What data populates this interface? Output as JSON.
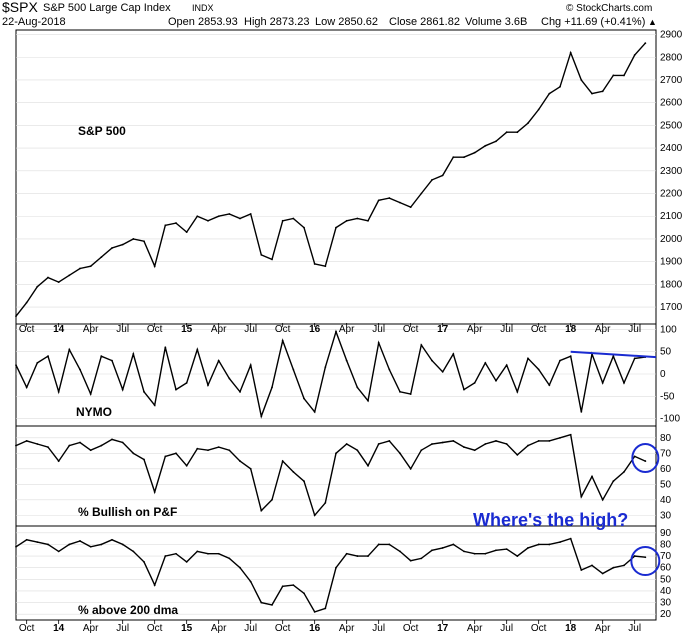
{
  "header": {
    "symbol": "$SPX",
    "name": "S&P 500 Large Cap Index",
    "exchange": "INDX",
    "date": "22-Aug-2018",
    "open": "Open 2853.93",
    "high": "High 2873.23",
    "low": "Low 2850.62",
    "close": "Close 2861.82",
    "volume": "Volume 3.6B",
    "chg": "Chg +11.69 (+0.41%)",
    "chg_arrow": "▲",
    "credit": "© StockCharts.com"
  },
  "x_tick_labels": [
    "Oct",
    "14",
    "Apr",
    "Jul",
    "Oct",
    "15",
    "Apr",
    "Jul",
    "Oct",
    "16",
    "Apr",
    "Jul",
    "Oct",
    "17",
    "Apr",
    "Jul",
    "Oct",
    "18",
    "Apr",
    "Jul"
  ],
  "annotation": "Where's the high?",
  "colors": {
    "price": "#000000",
    "annotation": "#1a2bd1",
    "grid": "#dddddd"
  },
  "chart_data": [
    {
      "type": "line",
      "name": "S&P 500",
      "x_range": [
        "2013-09",
        "2018-08"
      ],
      "y_ticks": [
        1700,
        1800,
        1900,
        2000,
        2100,
        2200,
        2300,
        2400,
        2500,
        2600,
        2700,
        2800,
        2900
      ],
      "ylim": [
        1630,
        2920
      ],
      "points": [
        [
          "2013-09",
          1660
        ],
        [
          "2013-10",
          1720
        ],
        [
          "2013-11",
          1790
        ],
        [
          "2013-12",
          1830
        ],
        [
          "2014-01",
          1810
        ],
        [
          "2014-02",
          1840
        ],
        [
          "2014-03",
          1870
        ],
        [
          "2014-04",
          1880
        ],
        [
          "2014-05",
          1920
        ],
        [
          "2014-06",
          1960
        ],
        [
          "2014-07",
          1975
        ],
        [
          "2014-08",
          2000
        ],
        [
          "2014-09",
          1990
        ],
        [
          "2014-10",
          1880
        ],
        [
          "2014-11",
          2060
        ],
        [
          "2014-12",
          2070
        ],
        [
          "2015-01",
          2030
        ],
        [
          "2015-02",
          2100
        ],
        [
          "2015-03",
          2080
        ],
        [
          "2015-04",
          2100
        ],
        [
          "2015-05",
          2110
        ],
        [
          "2015-06",
          2090
        ],
        [
          "2015-07",
          2110
        ],
        [
          "2015-08",
          1930
        ],
        [
          "2015-09",
          1910
        ],
        [
          "2015-10",
          2080
        ],
        [
          "2015-11",
          2090
        ],
        [
          "2015-12",
          2050
        ],
        [
          "2016-01",
          1890
        ],
        [
          "2016-02",
          1880
        ],
        [
          "2016-03",
          2050
        ],
        [
          "2016-04",
          2080
        ],
        [
          "2016-05",
          2090
        ],
        [
          "2016-06",
          2080
        ],
        [
          "2016-07",
          2170
        ],
        [
          "2016-08",
          2180
        ],
        [
          "2016-09",
          2160
        ],
        [
          "2016-10",
          2140
        ],
        [
          "2016-11",
          2200
        ],
        [
          "2016-12",
          2260
        ],
        [
          "2017-01",
          2280
        ],
        [
          "2017-02",
          2360
        ],
        [
          "2017-03",
          2360
        ],
        [
          "2017-04",
          2380
        ],
        [
          "2017-05",
          2410
        ],
        [
          "2017-06",
          2430
        ],
        [
          "2017-07",
          2470
        ],
        [
          "2017-08",
          2470
        ],
        [
          "2017-09",
          2510
        ],
        [
          "2017-10",
          2570
        ],
        [
          "2017-11",
          2640
        ],
        [
          "2017-12",
          2670
        ],
        [
          "2018-01",
          2820
        ],
        [
          "2018-02",
          2700
        ],
        [
          "2018-03",
          2640
        ],
        [
          "2018-04",
          2650
        ],
        [
          "2018-05",
          2720
        ],
        [
          "2018-06",
          2720
        ],
        [
          "2018-07",
          2810
        ],
        [
          "2018-08",
          2862
        ]
      ],
      "annotations": [
        "S&P 500"
      ]
    },
    {
      "type": "line",
      "name": "NYMO",
      "y_ticks": [
        100,
        50,
        0,
        -50,
        -100
      ],
      "ylim": [
        -110,
        110
      ],
      "points": [
        [
          "2013-09",
          20
        ],
        [
          "2013-10",
          -30
        ],
        [
          "2013-11",
          25
        ],
        [
          "2013-12",
          40
        ],
        [
          "2014-01",
          -40
        ],
        [
          "2014-02",
          55
        ],
        [
          "2014-03",
          10
        ],
        [
          "2014-04",
          -45
        ],
        [
          "2014-05",
          40
        ],
        [
          "2014-06",
          30
        ],
        [
          "2014-07",
          -35
        ],
        [
          "2014-08",
          45
        ],
        [
          "2014-09",
          -40
        ],
        [
          "2014-10",
          -70
        ],
        [
          "2014-11",
          60
        ],
        [
          "2014-12",
          -35
        ],
        [
          "2015-01",
          -20
        ],
        [
          "2015-02",
          55
        ],
        [
          "2015-03",
          -25
        ],
        [
          "2015-04",
          30
        ],
        [
          "2015-05",
          -10
        ],
        [
          "2015-06",
          -40
        ],
        [
          "2015-07",
          20
        ],
        [
          "2015-08",
          -95
        ],
        [
          "2015-09",
          -30
        ],
        [
          "2015-10",
          75
        ],
        [
          "2015-11",
          10
        ],
        [
          "2015-12",
          -55
        ],
        [
          "2016-01",
          -85
        ],
        [
          "2016-02",
          15
        ],
        [
          "2016-03",
          95
        ],
        [
          "2016-04",
          30
        ],
        [
          "2016-05",
          -30
        ],
        [
          "2016-06",
          -60
        ],
        [
          "2016-07",
          70
        ],
        [
          "2016-08",
          10
        ],
        [
          "2016-09",
          -40
        ],
        [
          "2016-10",
          -45
        ],
        [
          "2016-11",
          65
        ],
        [
          "2016-12",
          30
        ],
        [
          "2017-01",
          5
        ],
        [
          "2017-02",
          45
        ],
        [
          "2017-03",
          -35
        ],
        [
          "2017-04",
          -20
        ],
        [
          "2017-05",
          25
        ],
        [
          "2017-06",
          -15
        ],
        [
          "2017-07",
          20
        ],
        [
          "2017-08",
          -40
        ],
        [
          "2017-09",
          35
        ],
        [
          "2017-10",
          10
        ],
        [
          "2017-11",
          -25
        ],
        [
          "2017-12",
          30
        ],
        [
          "2018-01",
          40
        ],
        [
          "2018-02",
          -85
        ],
        [
          "2018-03",
          45
        ],
        [
          "2018-04",
          -20
        ],
        [
          "2018-05",
          40
        ],
        [
          "2018-06",
          -20
        ],
        [
          "2018-07",
          35
        ],
        [
          "2018-08",
          38
        ]
      ],
      "annotations": [
        "NYMO"
      ]
    },
    {
      "type": "line",
      "name": "% Bullish on P&F",
      "y_ticks": [
        80,
        70,
        60,
        50,
        40,
        30
      ],
      "ylim": [
        25,
        87
      ],
      "points": [
        [
          "2013-09",
          75
        ],
        [
          "2013-10",
          78
        ],
        [
          "2013-11",
          76
        ],
        [
          "2013-12",
          74
        ],
        [
          "2014-01",
          65
        ],
        [
          "2014-02",
          75
        ],
        [
          "2014-03",
          77
        ],
        [
          "2014-04",
          72
        ],
        [
          "2014-05",
          75
        ],
        [
          "2014-06",
          79
        ],
        [
          "2014-07",
          77
        ],
        [
          "2014-08",
          70
        ],
        [
          "2014-09",
          66
        ],
        [
          "2014-10",
          45
        ],
        [
          "2014-11",
          68
        ],
        [
          "2014-12",
          70
        ],
        [
          "2015-01",
          62
        ],
        [
          "2015-02",
          73
        ],
        [
          "2015-03",
          72
        ],
        [
          "2015-04",
          74
        ],
        [
          "2015-05",
          72
        ],
        [
          "2015-06",
          65
        ],
        [
          "2015-07",
          60
        ],
        [
          "2015-08",
          33
        ],
        [
          "2015-09",
          40
        ],
        [
          "2015-10",
          65
        ],
        [
          "2015-11",
          58
        ],
        [
          "2015-12",
          52
        ],
        [
          "2016-01",
          30
        ],
        [
          "2016-02",
          38
        ],
        [
          "2016-03",
          70
        ],
        [
          "2016-04",
          76
        ],
        [
          "2016-05",
          72
        ],
        [
          "2016-06",
          62
        ],
        [
          "2016-07",
          76
        ],
        [
          "2016-08",
          78
        ],
        [
          "2016-09",
          70
        ],
        [
          "2016-10",
          60
        ],
        [
          "2016-11",
          72
        ],
        [
          "2016-12",
          76
        ],
        [
          "2017-01",
          77
        ],
        [
          "2017-02",
          78
        ],
        [
          "2017-03",
          74
        ],
        [
          "2017-04",
          72
        ],
        [
          "2017-05",
          76
        ],
        [
          "2017-06",
          78
        ],
        [
          "2017-07",
          76
        ],
        [
          "2017-08",
          69
        ],
        [
          "2017-09",
          75
        ],
        [
          "2017-10",
          78
        ],
        [
          "2017-11",
          78
        ],
        [
          "2017-12",
          80
        ],
        [
          "2018-01",
          82
        ],
        [
          "2018-02",
          42
        ],
        [
          "2018-03",
          55
        ],
        [
          "2018-04",
          40
        ],
        [
          "2018-05",
          52
        ],
        [
          "2018-06",
          58
        ],
        [
          "2018-07",
          68
        ],
        [
          "2018-08",
          65
        ]
      ],
      "annotations": [
        "% Bullish on P&F"
      ]
    },
    {
      "type": "line",
      "name": "% above 200 dma",
      "y_ticks": [
        90,
        80,
        70,
        60,
        50,
        40,
        30,
        20
      ],
      "ylim": [
        15,
        95
      ],
      "points": [
        [
          "2013-09",
          78
        ],
        [
          "2013-10",
          84
        ],
        [
          "2013-11",
          82
        ],
        [
          "2013-12",
          80
        ],
        [
          "2014-01",
          74
        ],
        [
          "2014-02",
          80
        ],
        [
          "2014-03",
          83
        ],
        [
          "2014-04",
          78
        ],
        [
          "2014-05",
          80
        ],
        [
          "2014-06",
          84
        ],
        [
          "2014-07",
          80
        ],
        [
          "2014-08",
          74
        ],
        [
          "2014-09",
          65
        ],
        [
          "2014-10",
          45
        ],
        [
          "2014-11",
          70
        ],
        [
          "2014-12",
          72
        ],
        [
          "2015-01",
          65
        ],
        [
          "2015-02",
          74
        ],
        [
          "2015-03",
          72
        ],
        [
          "2015-04",
          72
        ],
        [
          "2015-05",
          68
        ],
        [
          "2015-06",
          60
        ],
        [
          "2015-07",
          48
        ],
        [
          "2015-08",
          30
        ],
        [
          "2015-09",
          28
        ],
        [
          "2015-10",
          44
        ],
        [
          "2015-11",
          45
        ],
        [
          "2015-12",
          38
        ],
        [
          "2016-01",
          22
        ],
        [
          "2016-02",
          25
        ],
        [
          "2016-03",
          60
        ],
        [
          "2016-04",
          72
        ],
        [
          "2016-05",
          70
        ],
        [
          "2016-06",
          70
        ],
        [
          "2016-07",
          80
        ],
        [
          "2016-08",
          80
        ],
        [
          "2016-09",
          74
        ],
        [
          "2016-10",
          66
        ],
        [
          "2016-11",
          68
        ],
        [
          "2016-12",
          75
        ],
        [
          "2017-01",
          77
        ],
        [
          "2017-02",
          80
        ],
        [
          "2017-03",
          74
        ],
        [
          "2017-04",
          72
        ],
        [
          "2017-05",
          72
        ],
        [
          "2017-06",
          75
        ],
        [
          "2017-07",
          76
        ],
        [
          "2017-08",
          70
        ],
        [
          "2017-09",
          77
        ],
        [
          "2017-10",
          80
        ],
        [
          "2017-11",
          80
        ],
        [
          "2017-12",
          82
        ],
        [
          "2018-01",
          85
        ],
        [
          "2018-02",
          58
        ],
        [
          "2018-03",
          62
        ],
        [
          "2018-04",
          55
        ],
        [
          "2018-05",
          60
        ],
        [
          "2018-06",
          62
        ],
        [
          "2018-07",
          70
        ],
        [
          "2018-08",
          69
        ]
      ],
      "annotations": [
        "% above 200 dma"
      ]
    }
  ]
}
